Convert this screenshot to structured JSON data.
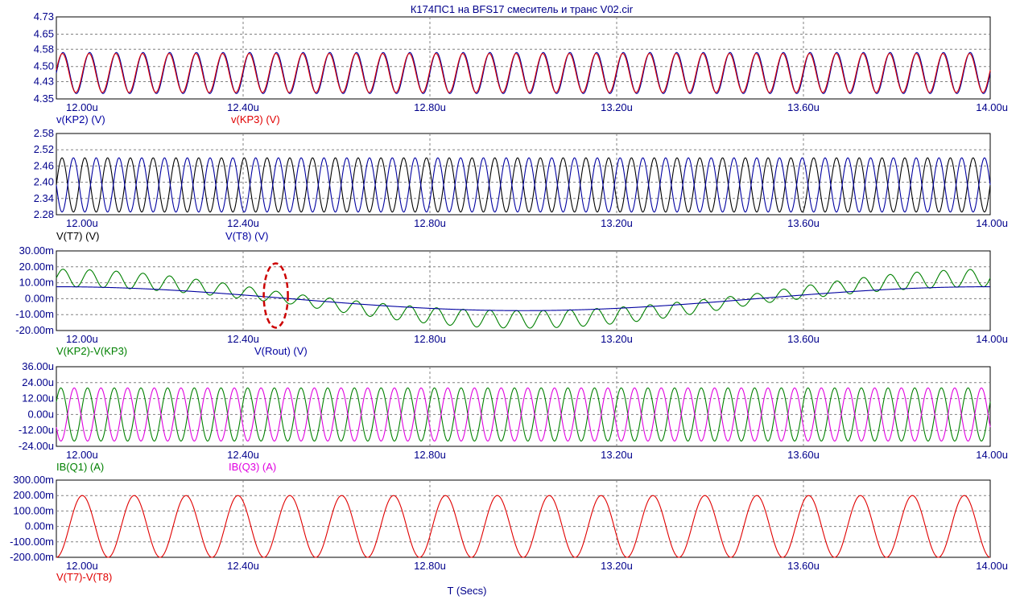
{
  "title": "К174ПС1 на BFS17 смеситель и транс V02.cir",
  "xaxis": {
    "label": "T (Secs)",
    "range": [
      12.0,
      14.0
    ],
    "ticks": [
      "12.00u",
      "12.40u",
      "12.80u",
      "13.20u",
      "13.60u",
      "14.00u"
    ],
    "tick_values": [
      12.0,
      12.4,
      12.8,
      13.2,
      13.6,
      14.0
    ]
  },
  "colors": {
    "axis_text": "#00008b",
    "frame": "#000000",
    "grid": "#808080",
    "annotation": "#cc0000"
  },
  "chart_data": [
    {
      "type": "line",
      "ylim": [
        4.35,
        4.73
      ],
      "yticks": [
        "4.73",
        "4.65",
        "4.58",
        "4.50",
        "4.43",
        "4.35"
      ],
      "ytick_values": [
        4.73,
        4.65,
        4.58,
        4.5,
        4.43,
        4.35
      ],
      "grid": true,
      "series": [
        {
          "name": "v(KP2) (V)",
          "color": "#0000a0",
          "shape": "sine",
          "frequency_per_us": 17.5,
          "offset": 4.47,
          "amplitude": 0.095,
          "phase": 0.0
        },
        {
          "name": "v(KP3) (V)",
          "color": "#e00000",
          "shape": "sine",
          "frequency_per_us": 17.5,
          "offset": 4.47,
          "amplitude": 0.09,
          "phase": 0.15
        }
      ]
    },
    {
      "type": "line",
      "ylim": [
        2.28,
        2.58
      ],
      "yticks": [
        "2.58",
        "2.52",
        "2.46",
        "2.40",
        "2.34",
        "2.28"
      ],
      "ytick_values": [
        2.58,
        2.52,
        2.46,
        2.4,
        2.34,
        2.28
      ],
      "grid": true,
      "series": [
        {
          "name": "V(T7) (V)",
          "color": "#000000",
          "shape": "sine",
          "frequency_per_us": 20.5,
          "offset": 2.39,
          "amplitude": 0.1,
          "phase": 0.0
        },
        {
          "name": "V(T8) (V)",
          "color": "#0000a0",
          "shape": "sine",
          "frequency_per_us": 20.5,
          "offset": 2.39,
          "amplitude": 0.1,
          "phase": 3.14159
        }
      ]
    },
    {
      "type": "line",
      "ylim": [
        -20.0,
        30.0
      ],
      "yticks": [
        "30.00m",
        "20.00m",
        "10.00m",
        "0.00m",
        "-10.00m",
        "-20.00m"
      ],
      "ytick_values": [
        30,
        20,
        10,
        0,
        -10,
        -20
      ],
      "grid": true,
      "series": [
        {
          "name": "V(KP2)-V(KP3)",
          "color": "#008000",
          "shape": "beat",
          "frequency_per_us": 17.5,
          "amplitude": 5.5,
          "envelope_amplitude": 13.0,
          "envelope_period_us": 2.0
        },
        {
          "name": "V(Rout) (V)",
          "color": "#0000a0",
          "shape": "slow",
          "amplitude": 7.5,
          "envelope_period_us": 2.0
        }
      ],
      "annotation": {
        "shape": "dashed-ellipse",
        "x": 12.47,
        "y": 2.0
      }
    },
    {
      "type": "line",
      "ylim": [
        -24.0,
        36.0
      ],
      "yticks": [
        "36.00u",
        "24.00u",
        "12.00u",
        "0.00u",
        "-12.00u",
        "-24.00u"
      ],
      "ytick_values": [
        36,
        24,
        12,
        0,
        -12,
        -24
      ],
      "grid": true,
      "series": [
        {
          "name": "IB(Q1) (A)",
          "color": "#008000",
          "shape": "sine",
          "frequency_per_us": 17.5,
          "offset": 0.0,
          "amplitude": 20.0,
          "phase": 0.5
        },
        {
          "name": "IB(Q3) (A)",
          "color": "#e000e0",
          "shape": "sine",
          "frequency_per_us": 17.5,
          "offset": 0.0,
          "amplitude": 20.0,
          "phase": 3.64
        }
      ]
    },
    {
      "type": "line",
      "ylim": [
        -200.0,
        300.0
      ],
      "yticks": [
        "300.00m",
        "200.00m",
        "100.00m",
        "0.00m",
        "-100.00m",
        "-200.00m"
      ],
      "ytick_values": [
        300,
        200,
        100,
        0,
        -100,
        -200
      ],
      "grid": true,
      "series": [
        {
          "name": "V(T7)-V(T8)",
          "color": "#e00000",
          "shape": "sine",
          "frequency_per_us": 9.0,
          "offset": 0.0,
          "amplitude": 200.0,
          "phase": -1.5708
        }
      ]
    }
  ]
}
